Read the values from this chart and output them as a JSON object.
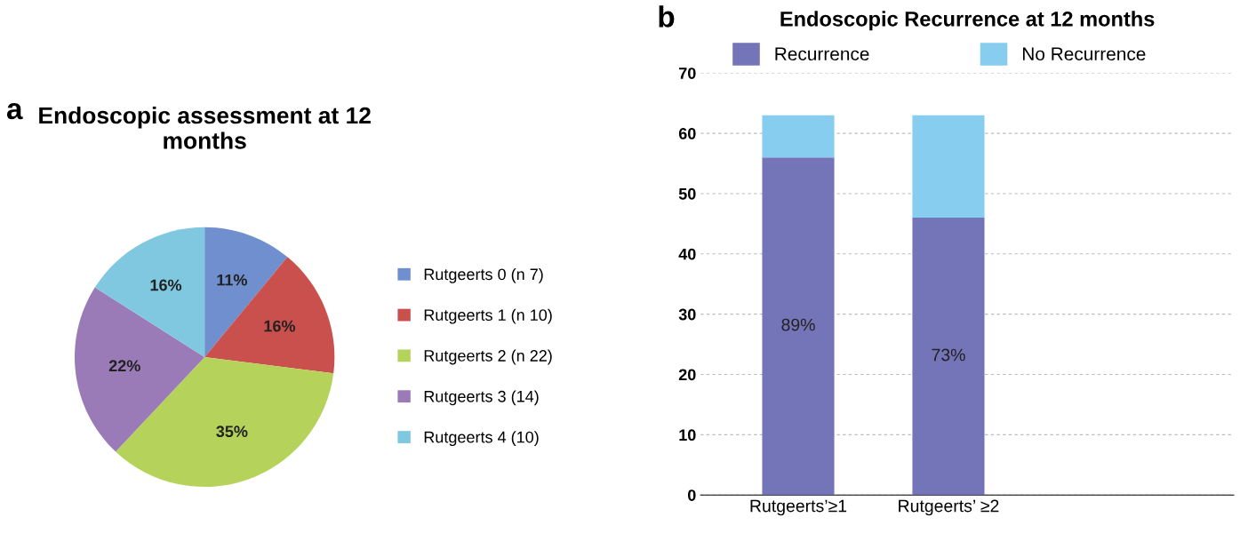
{
  "chart_data": [
    {
      "type": "pie",
      "title": "Endoscopic assessment at 12 months",
      "annotations": [
        "a"
      ],
      "categories": [
        "Rutgeerts 0 (n 7)",
        "Rutgeerts 1 (n 10)",
        "Rutgeerts 2 (n 22)",
        "Rutgeerts 3 (14)",
        "Rutgeerts 4 (10)"
      ],
      "values": [
        11,
        16,
        35,
        22,
        16
      ],
      "colors": [
        "#6f8fcf",
        "#c9504c",
        "#b5d35a",
        "#9a7bb8",
        "#7fc8e0"
      ],
      "value_labels": [
        "11%",
        "16%",
        "35%",
        "22%",
        "16%"
      ],
      "legend": "right"
    },
    {
      "type": "bar",
      "stacked": true,
      "title": "Endoscopic Recurrence at 12 months",
      "categories": [
        "Rutgeerts’≥1",
        "Rutgeerts’ ≥2"
      ],
      "annotations": [
        "b",
        "89%",
        "73%"
      ],
      "series": [
        {
          "name": "Recurrence",
          "color": "#7474b8",
          "values": [
            56,
            46
          ]
        },
        {
          "name": "No Recurrence",
          "color": "#86cdf0",
          "values": [
            7,
            17
          ]
        }
      ],
      "ylim": [
        0,
        70
      ],
      "yticks": [
        0,
        10,
        20,
        30,
        40,
        50,
        60,
        70
      ],
      "grid": "y",
      "legend": "top"
    }
  ]
}
